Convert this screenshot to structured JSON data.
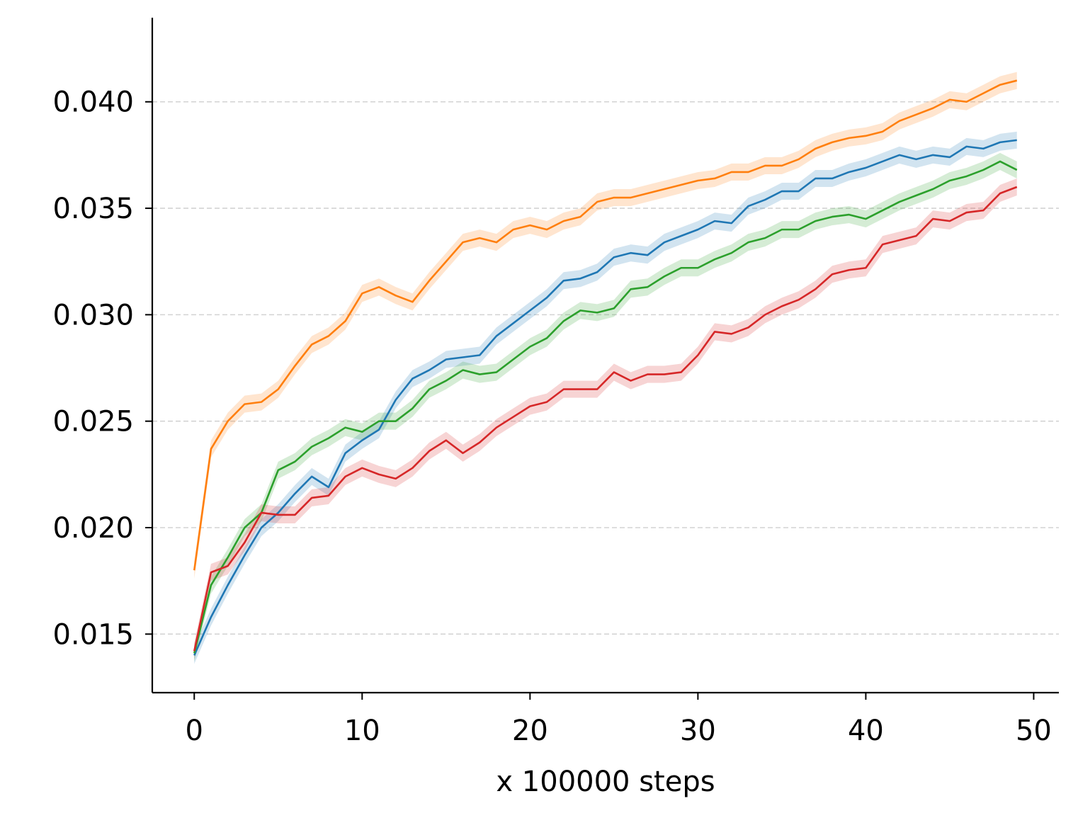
{
  "chart_data": {
    "type": "line",
    "title": "",
    "xlabel": "x 100000 steps",
    "ylabel": "",
    "xlim": [
      -2.5,
      51.5
    ],
    "ylim": [
      0.01225,
      0.04395
    ],
    "x_ticks": [
      0,
      10,
      20,
      30,
      40,
      50
    ],
    "x_tick_labels": [
      "0",
      "10",
      "20",
      "30",
      "40",
      "50"
    ],
    "y_ticks": [
      0.015,
      0.02,
      0.025,
      0.03,
      0.035,
      0.04
    ],
    "y_tick_labels": [
      "0.015",
      "0.020",
      "0.025",
      "0.030",
      "0.035",
      "0.040"
    ],
    "grid": "horizontal dashed",
    "band_halfwidth": 0.0004,
    "x": [
      0,
      1,
      2,
      3,
      4,
      5,
      6,
      7,
      8,
      9,
      10,
      11,
      12,
      13,
      14,
      15,
      16,
      17,
      18,
      19,
      20,
      21,
      22,
      23,
      24,
      25,
      26,
      27,
      28,
      29,
      30,
      31,
      32,
      33,
      34,
      35,
      36,
      37,
      38,
      39,
      40,
      41,
      42,
      43,
      44,
      45,
      46,
      47,
      48,
      49
    ],
    "series": [
      {
        "name": "blue",
        "color": "#1f77b4",
        "values": [
          0.014,
          0.0158,
          0.0173,
          0.0187,
          0.02,
          0.0207,
          0.0216,
          0.0224,
          0.0219,
          0.0235,
          0.0241,
          0.0246,
          0.026,
          0.027,
          0.0274,
          0.0279,
          0.028,
          0.0281,
          0.029,
          0.0296,
          0.0302,
          0.0308,
          0.0316,
          0.0317,
          0.032,
          0.0327,
          0.0329,
          0.0328,
          0.0334,
          0.0337,
          0.034,
          0.0344,
          0.0343,
          0.0351,
          0.0354,
          0.0358,
          0.0358,
          0.0364,
          0.0364,
          0.0367,
          0.0369,
          0.0372,
          0.0375,
          0.0373,
          0.0375,
          0.0374,
          0.0379,
          0.0378,
          0.0381,
          0.0382
        ]
      },
      {
        "name": "orange",
        "color": "#ff7f0e",
        "values": [
          0.018,
          0.0237,
          0.025,
          0.0258,
          0.0259,
          0.0265,
          0.0276,
          0.0286,
          0.029,
          0.0297,
          0.031,
          0.0313,
          0.0309,
          0.0306,
          0.0316,
          0.0325,
          0.0334,
          0.0336,
          0.0334,
          0.034,
          0.0342,
          0.034,
          0.0344,
          0.0346,
          0.0353,
          0.0355,
          0.0355,
          0.0357,
          0.0359,
          0.0361,
          0.0363,
          0.0364,
          0.0367,
          0.0367,
          0.037,
          0.037,
          0.0373,
          0.0378,
          0.0381,
          0.0383,
          0.0384,
          0.0386,
          0.0391,
          0.0394,
          0.0397,
          0.0401,
          0.04,
          0.0404,
          0.0408,
          0.041
        ]
      },
      {
        "name": "green",
        "color": "#2ca02c",
        "values": [
          0.0141,
          0.0173,
          0.0186,
          0.02,
          0.0207,
          0.0227,
          0.0231,
          0.0238,
          0.0242,
          0.0247,
          0.0245,
          0.025,
          0.025,
          0.0256,
          0.0265,
          0.0269,
          0.0274,
          0.0272,
          0.0273,
          0.0279,
          0.0285,
          0.0289,
          0.0297,
          0.0302,
          0.0301,
          0.0303,
          0.0312,
          0.0313,
          0.0318,
          0.0322,
          0.0322,
          0.0326,
          0.0329,
          0.0334,
          0.0336,
          0.034,
          0.034,
          0.0344,
          0.0346,
          0.0347,
          0.0345,
          0.0349,
          0.0353,
          0.0356,
          0.0359,
          0.0363,
          0.0365,
          0.0368,
          0.0372,
          0.0368
        ]
      },
      {
        "name": "red",
        "color": "#d62728",
        "values": [
          0.0142,
          0.0179,
          0.0182,
          0.0193,
          0.0207,
          0.0206,
          0.0206,
          0.0214,
          0.0215,
          0.0224,
          0.0228,
          0.0225,
          0.0223,
          0.0228,
          0.0236,
          0.0241,
          0.0235,
          0.024,
          0.0247,
          0.0252,
          0.0257,
          0.0259,
          0.0265,
          0.0265,
          0.0265,
          0.0273,
          0.0269,
          0.0272,
          0.0272,
          0.0273,
          0.0281,
          0.0292,
          0.0291,
          0.0294,
          0.03,
          0.0304,
          0.0307,
          0.0312,
          0.0319,
          0.0321,
          0.0322,
          0.0333,
          0.0335,
          0.0337,
          0.0345,
          0.0344,
          0.0348,
          0.0349,
          0.0357,
          0.036
        ]
      }
    ]
  }
}
